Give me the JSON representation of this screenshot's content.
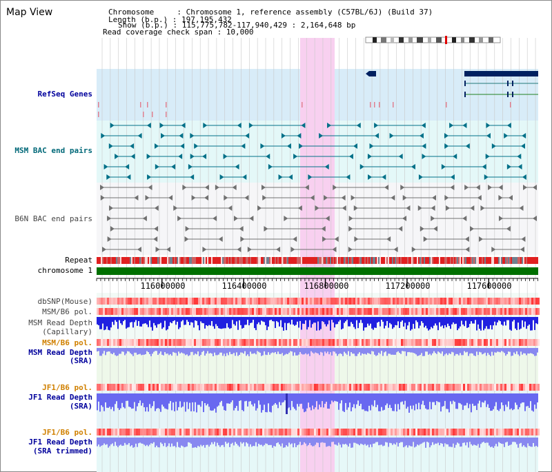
{
  "view_title": "Map View",
  "header": {
    "chromosome_label": "Chromosome     : Chromosome 1, reference assembly (C57BL/6J) (Build 37)",
    "length_label": "Length (b.p.) : 197,195,432",
    "show_label": "Show (b.p.) : 115,775,782-117,940,429 : 2,164,648 bp",
    "coverage_label": "Read coverage check span : 10,000"
  },
  "tracks": {
    "refseq": "RefSeq Genes",
    "msm_bac": "MSM BAC end pairs",
    "b6n_bac": "B6N BAC end pairs",
    "repeat": "Repeat",
    "chromosome": "chromosome 1",
    "dbsnp": "dbSNP(Mouse)",
    "msm_b6_pol_1": "MSM/B6 pol.",
    "msm_read_depth_cap_1": "MSM Read Depth",
    "msm_read_depth_cap_2": "(Capillary)",
    "msm_b6_pol_2": "MSM/B6 pol.",
    "msm_read_depth_sra_1": "MSM Read Depth",
    "msm_read_depth_sra_2": "(SRA)",
    "jf1_b6_pol_1": "JF1/B6 pol.",
    "jf1_read_depth_sra_1": "JF1 Read Depth",
    "jf1_read_depth_sra_2": "(SRA)",
    "jf1_b6_pol_2": "JF1/B6 pol.",
    "jf1_read_depth_trim_1": "JF1 Read Depth",
    "jf1_read_depth_trim_2": "(SRA trimmed)"
  },
  "axis": {
    "ticks": [
      "116000000",
      "116400000",
      "116800000",
      "117200000",
      "117600000"
    ]
  },
  "colors": {
    "highlight": "#f8d0f0",
    "refseq_bg": "#d8ecf8",
    "msm_bac_bg": "#e4f8f8",
    "teal_feature": "#007088",
    "navy_feature": "#002060",
    "gray_feature": "#707070",
    "chromosome_bar": "#007000",
    "snp_red": "#f05050",
    "depth_blue": "#2020e0",
    "depth_light": "#8888f0"
  }
}
